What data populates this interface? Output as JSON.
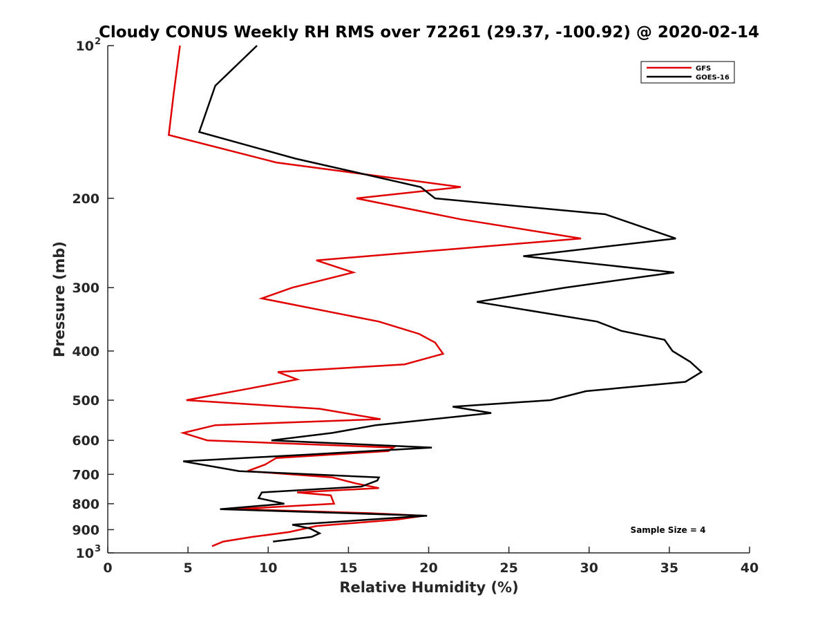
{
  "chart_data": {
    "type": "line",
    "title": "Cloudy CONUS Weekly RH RMS over 72261 (29.37, -100.92) @ 2020-02-14",
    "xlabel": "Relative Humidity (%)",
    "ylabel": "Pressure (mb)",
    "xlim": [
      0,
      40
    ],
    "ylim": [
      100,
      1000
    ],
    "y_scale": "log",
    "y_reversed": true,
    "grid": false,
    "legend_position": "top-right",
    "x_ticks": [
      "0",
      "5",
      "10",
      "15",
      "20",
      "25",
      "30",
      "35",
      "40"
    ],
    "x_tick_values": [
      0,
      5,
      10,
      15,
      20,
      25,
      30,
      35,
      40
    ],
    "y_ticks": [
      {
        "value": 100,
        "base": "10",
        "exp": "2"
      },
      {
        "value": 200,
        "label": "200"
      },
      {
        "value": 300,
        "label": "300"
      },
      {
        "value": 400,
        "label": "400"
      },
      {
        "value": 500,
        "label": "500"
      },
      {
        "value": 600,
        "label": "600"
      },
      {
        "value": 700,
        "label": "700"
      },
      {
        "value": 800,
        "label": "800"
      },
      {
        "value": 900,
        "label": "900"
      },
      {
        "value": 1000,
        "base": "10",
        "exp": "3"
      }
    ],
    "annotation": "Sample Size = 4",
    "series": [
      {
        "name": "GFS",
        "color": "#e00000",
        "points": [
          [
            4.5,
            100
          ],
          [
            4.1,
            125
          ],
          [
            3.8,
            150
          ],
          [
            10.5,
            170
          ],
          [
            22.0,
            190
          ],
          [
            15.5,
            200
          ],
          [
            22.0,
            220
          ],
          [
            29.5,
            240
          ],
          [
            13.0,
            265
          ],
          [
            15.3,
            280
          ],
          [
            11.5,
            300
          ],
          [
            9.6,
            315
          ],
          [
            16.9,
            350
          ],
          [
            19.4,
            370
          ],
          [
            20.4,
            385
          ],
          [
            20.9,
            405
          ],
          [
            18.5,
            425
          ],
          [
            10.6,
            440
          ],
          [
            11.8,
            455
          ],
          [
            8.7,
            475
          ],
          [
            4.9,
            500
          ],
          [
            13.2,
            520
          ],
          [
            17.0,
            545
          ],
          [
            6.7,
            560
          ],
          [
            4.7,
            580
          ],
          [
            6.2,
            600
          ],
          [
            17.8,
            620
          ],
          [
            17.5,
            630
          ],
          [
            10.5,
            650
          ],
          [
            9.8,
            670
          ],
          [
            8.7,
            690
          ],
          [
            14.0,
            710
          ],
          [
            15.5,
            730
          ],
          [
            16.9,
            745
          ],
          [
            11.8,
            760
          ],
          [
            13.9,
            770
          ],
          [
            14.1,
            800
          ],
          [
            8.0,
            820
          ],
          [
            16.3,
            835
          ],
          [
            19.7,
            845
          ],
          [
            18.0,
            860
          ],
          [
            13.0,
            885
          ],
          [
            11.3,
            910
          ],
          [
            9.0,
            930
          ],
          [
            7.2,
            950
          ],
          [
            6.5,
            970
          ]
        ]
      },
      {
        "name": "GOES-16",
        "color": "#000000",
        "points": [
          [
            9.3,
            100
          ],
          [
            6.7,
            120
          ],
          [
            5.7,
            148
          ],
          [
            11.7,
            167
          ],
          [
            19.5,
            190
          ],
          [
            20.4,
            200
          ],
          [
            31.0,
            215
          ],
          [
            35.4,
            240
          ],
          [
            25.9,
            260
          ],
          [
            35.3,
            280
          ],
          [
            28.5,
            300
          ],
          [
            23.0,
            320
          ],
          [
            30.5,
            350
          ],
          [
            32.0,
            365
          ],
          [
            34.7,
            380
          ],
          [
            35.2,
            400
          ],
          [
            36.3,
            420
          ],
          [
            37.0,
            440
          ],
          [
            36.0,
            460
          ],
          [
            29.8,
            480
          ],
          [
            27.6,
            500
          ],
          [
            21.5,
            515
          ],
          [
            23.9,
            530
          ],
          [
            16.7,
            560
          ],
          [
            14.0,
            580
          ],
          [
            10.2,
            600
          ],
          [
            20.2,
            620
          ],
          [
            12.5,
            640
          ],
          [
            4.7,
            660
          ],
          [
            8.2,
            690
          ],
          [
            16.9,
            710
          ],
          [
            16.8,
            720
          ],
          [
            15.8,
            740
          ],
          [
            9.6,
            760
          ],
          [
            9.4,
            780
          ],
          [
            11.0,
            800
          ],
          [
            7.0,
            820
          ],
          [
            19.9,
            845
          ],
          [
            11.5,
            880
          ],
          [
            12.6,
            895
          ],
          [
            13.2,
            915
          ],
          [
            12.7,
            930
          ],
          [
            10.3,
            950
          ]
        ]
      }
    ]
  }
}
